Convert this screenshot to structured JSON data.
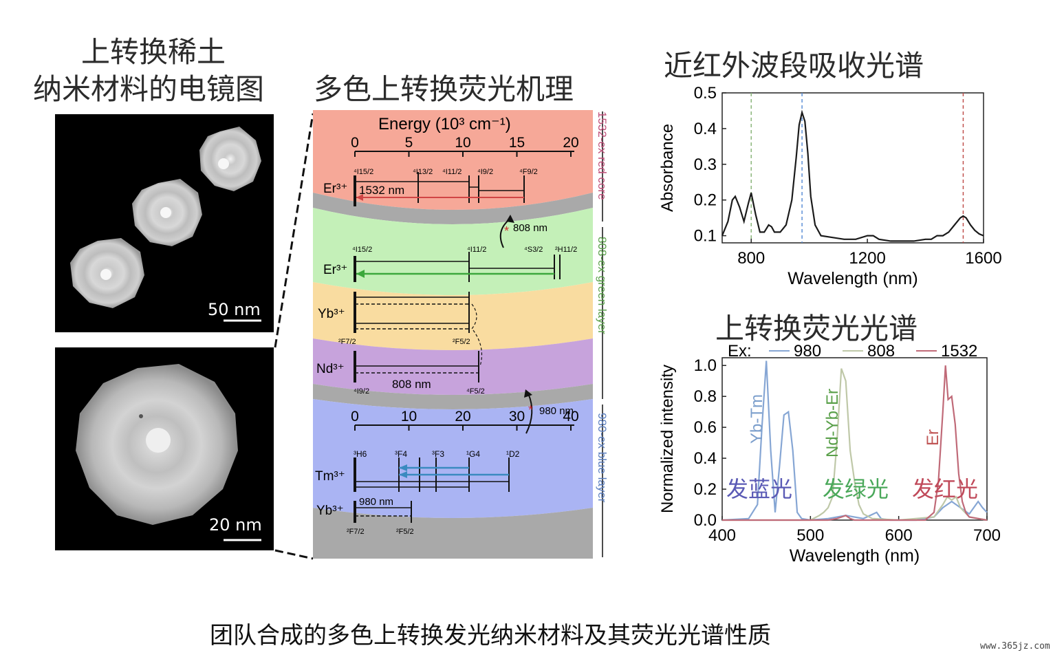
{
  "titles": {
    "tem_line1": "上转换稀土",
    "tem_line2": "纳米材料的电镜图",
    "mechanism": "多色上转换荧光机理",
    "absorption": "近红外波段吸收光谱",
    "emission": "上转换荧光光谱"
  },
  "tem": {
    "scale_top": "50 nm",
    "scale_bottom": "20 nm"
  },
  "mechanism": {
    "energy_axis_title": "Energy (10³ cm⁻¹)",
    "top_axis_ticks": [
      "0",
      "5",
      "10",
      "15",
      "20"
    ],
    "bottom_axis_ticks": [
      "0",
      "10",
      "20",
      "30",
      "40"
    ],
    "side_label_core": "1532-ex red core",
    "side_label_green": "808-ex green layer",
    "side_label_blue": "980-ex blue layer",
    "ions": [
      "Er³⁺",
      "Er³⁺",
      "Yb³⁺",
      "Nd³⁺",
      "Tm³⁺",
      "Yb³⁺"
    ],
    "states_core": [
      "⁴I15/2",
      "⁴I13/2",
      "⁴I11/2",
      "⁴I9/2",
      "⁴F9/2"
    ],
    "states_green": [
      "⁴I15/2",
      "⁴I11/2",
      "⁴S3/2",
      "²H11/2"
    ],
    "states_yb": [
      "²F7/2",
      "²F5/2"
    ],
    "states_nd": [
      "⁴I9/2",
      "⁴F5/2"
    ],
    "states_tm": [
      "³H6",
      "³F4",
      "³F3",
      "¹G4",
      "¹D2"
    ],
    "states_yb2": [
      "²F7/2",
      "²F5/2"
    ],
    "labels": {
      "nm1532": "1532 nm",
      "nm808": "808 nm",
      "nm808b": "808 nm",
      "nm980": "980 nm",
      "nm980b": "980 nm"
    },
    "colors": {
      "core": "#f6a898",
      "green": "#c4f0b8",
      "yellow": "#f9dca0",
      "purple": "#c7a3dc",
      "blue": "#aab4f3",
      "gray": "#a9a9a9"
    }
  },
  "chart_data": [
    {
      "type": "line",
      "title": "近红外波段吸收光谱",
      "xlabel": "Wavelength (nm)",
      "ylabel": "Absorbance",
      "xlim": [
        700,
        1600
      ],
      "ylim": [
        0.08,
        0.5
      ],
      "xticks": [
        800,
        1200,
        1600
      ],
      "yticks": [
        0.1,
        0.2,
        0.3,
        0.4,
        0.5
      ],
      "vlines": [
        {
          "x": 800,
          "color": "#8ab57a"
        },
        {
          "x": 975,
          "color": "#5b8fd6"
        },
        {
          "x": 1530,
          "color": "#c0504d"
        }
      ],
      "series": [
        {
          "color": "#1a1a1a",
          "x": [
            700,
            720,
            735,
            745,
            760,
            775,
            790,
            800,
            815,
            830,
            845,
            860,
            870,
            880,
            900,
            920,
            940,
            955,
            965,
            975,
            985,
            995,
            1005,
            1020,
            1040,
            1080,
            1120,
            1160,
            1200,
            1220,
            1240,
            1280,
            1320,
            1360,
            1400,
            1420,
            1440,
            1460,
            1480,
            1500,
            1520,
            1530,
            1540,
            1555,
            1570,
            1585,
            1600
          ],
          "y": [
            0.1,
            0.14,
            0.2,
            0.21,
            0.18,
            0.14,
            0.19,
            0.22,
            0.16,
            0.11,
            0.11,
            0.13,
            0.125,
            0.11,
            0.11,
            0.13,
            0.2,
            0.32,
            0.41,
            0.445,
            0.42,
            0.33,
            0.21,
            0.13,
            0.1,
            0.095,
            0.09,
            0.09,
            0.1,
            0.1,
            0.09,
            0.085,
            0.085,
            0.085,
            0.09,
            0.09,
            0.1,
            0.1,
            0.11,
            0.13,
            0.15,
            0.155,
            0.15,
            0.13,
            0.115,
            0.105,
            0.1
          ]
        }
      ]
    },
    {
      "type": "line",
      "title": "上转换荧光光谱",
      "xlabel": "Wavelength (nm)",
      "ylabel": "Normalized intensity",
      "xlim": [
        400,
        700
      ],
      "ylim": [
        0,
        1.05
      ],
      "xticks": [
        400,
        500,
        600,
        700
      ],
      "yticks": [
        0.0,
        0.2,
        0.4,
        0.6,
        0.8,
        1.0
      ],
      "legend_prefix": "Ex:",
      "annotations": [
        {
          "text": "Yb-Tm",
          "color": "#7c9fcc"
        },
        {
          "text": "Nd-Yb-Er",
          "color": "#5aa04a"
        },
        {
          "text": "Er",
          "color": "#c05555"
        },
        {
          "text": "发蓝光",
          "color": "#5a5ab5"
        },
        {
          "text": "发绿光",
          "color": "#4aa85a"
        },
        {
          "text": "发红光",
          "color": "#c04a5a"
        }
      ],
      "series": [
        {
          "name": "980",
          "color": "#86a6d4",
          "x": [
            400,
            430,
            440,
            445,
            450,
            455,
            460,
            465,
            470,
            475,
            480,
            485,
            490,
            500,
            520,
            540,
            560,
            575,
            580,
            590,
            620,
            640,
            650,
            660,
            670,
            680,
            690,
            695,
            700
          ],
          "y": [
            0.0,
            0.01,
            0.1,
            0.6,
            1.03,
            0.45,
            0.05,
            0.35,
            0.68,
            0.7,
            0.45,
            0.05,
            0.01,
            0.0,
            0.01,
            0.03,
            0.01,
            0.05,
            0.01,
            0.0,
            0.0,
            0.02,
            0.08,
            0.12,
            0.08,
            0.04,
            0.12,
            0.08,
            0.05
          ]
        },
        {
          "name": "808",
          "color": "#bfc8a8",
          "x": [
            400,
            500,
            510,
            515,
            520,
            525,
            530,
            535,
            540,
            545,
            550,
            555,
            560,
            570,
            600,
            640,
            650,
            655,
            660,
            665,
            670,
            680,
            700
          ],
          "y": [
            0.0,
            0.0,
            0.03,
            0.05,
            0.08,
            0.15,
            0.5,
            0.98,
            0.9,
            0.45,
            0.25,
            0.1,
            0.04,
            0.01,
            0.0,
            0.02,
            0.1,
            0.15,
            0.13,
            0.15,
            0.08,
            0.02,
            0.0
          ]
        },
        {
          "name": "1532",
          "color": "#c06a78",
          "x": [
            400,
            520,
            530,
            540,
            545,
            550,
            560,
            600,
            630,
            640,
            645,
            650,
            653,
            656,
            660,
            664,
            668,
            672,
            676,
            680,
            690,
            700
          ],
          "y": [
            0.0,
            0.0,
            0.01,
            0.03,
            0.01,
            0.0,
            0.0,
            0.0,
            0.0,
            0.05,
            0.25,
            0.7,
            1.0,
            0.78,
            0.8,
            0.62,
            0.3,
            0.12,
            0.05,
            0.02,
            0.01,
            0.0
          ]
        }
      ]
    }
  ],
  "caption": "团队合成的多色上转换发光纳米材料及其荧光光谱性质",
  "watermark": "www.365jz.com"
}
